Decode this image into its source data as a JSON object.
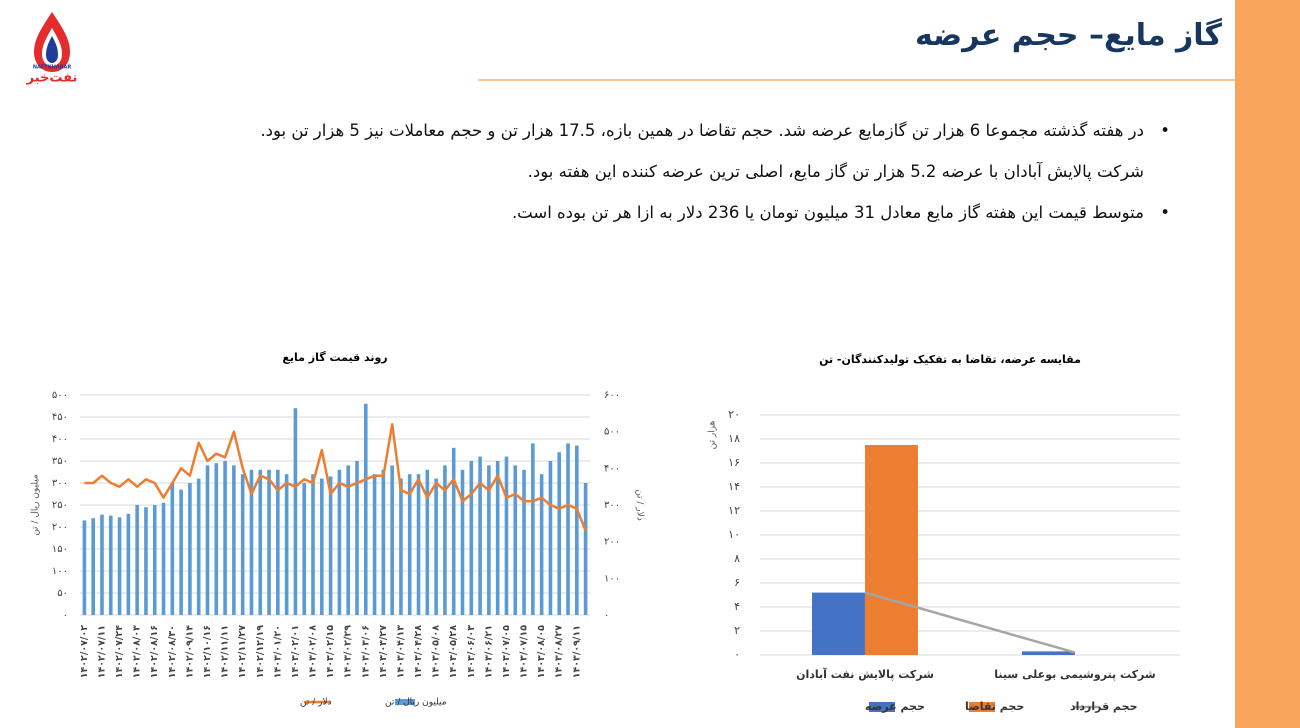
{
  "logo": {
    "brand_latin": "NAFTKHABAR",
    "brand": "نفت‌خبر"
  },
  "header": {
    "title": "گاز مایع– حجم عرضه"
  },
  "bullets": [
    {
      "text": "در هفته گذشته مجموعا 6 هزار تن گازمایع عرضه شد. حجم تقاضا در همین بازه، 17.5 هزار تن و حجم معاملات نیز 5 هزار تن بود.",
      "bullet": true
    },
    {
      "text": "شرکت پالایش آبادان با عرضه 5.2 هزار تن گاز مایع، اصلی ترین عرضه کننده این هفته بود.",
      "bullet": false
    },
    {
      "text": "متوسط قیمت این هفته گاز مایع معادل 31 میلیون تومان یا 236 دلار به ازا هر تن بوده است.",
      "bullet": true
    }
  ],
  "chart_data": [
    {
      "type": "bar",
      "title": "روند قیمت گاز مایع",
      "y_label": "میلیون ریال / تن",
      "y2_label": "دلار / تن",
      "grid": true,
      "categories": [
        "۱۴۰۲/۰۷/۰۲",
        null,
        "۱۴۰۲/۰۷/۱۱",
        null,
        "۱۴۰۲/۰۷/۲۴",
        null,
        "۱۴۰۲/۰۸/۰۳",
        null,
        "۱۴۰۲/۰۸/۱۶",
        null,
        "۱۴۰۲/۰۸/۳۰",
        null,
        "۱۴۰۲/۰۹/۱۴",
        null,
        "۱۴۰۲/۱۰/۱۶",
        null,
        "۱۴۰۲/۱۱/۱۱",
        null,
        "۱۴۰۲/۱۱/۲۷",
        null,
        "۱۴۰۲/۱۲/۱۹",
        null,
        "۱۴۰۳/۰۱/۲۰",
        null,
        "۱۴۰۳/۰۲/۰۱",
        null,
        "۱۴۰۳/۰۲/۰۸",
        null,
        "۱۴۰۳/۰۲/۱۵",
        null,
        "۱۴۰۳/۰۲/۲۹",
        null,
        "۱۴۰۳/۰۳/۰۶",
        null,
        "۱۴۰۳/۰۳/۲۷",
        null,
        "۱۴۰۳/۰۴/۱۳",
        null,
        "۱۴۰۳/۰۴/۲۸",
        null,
        "۱۴۰۳/۰۵/۰۸",
        null,
        "۱۴۰۳/۰۵/۲۸",
        null,
        "۱۴۰۳/۰۶/۰۳",
        null,
        "۱۴۰۳/۰۶/۲۱",
        null,
        "۱۴۰۳/۰۷/۰۵",
        null,
        "۱۴۰۳/۰۷/۱۵",
        null,
        "۱۴۰۳/۰۸/۰۵",
        null,
        "۱۴۰۳/۰۸/۲۷",
        null,
        "۱۴۰۳/۰۹/۱۱",
        null
      ],
      "series": [
        {
          "name": "میلیون ریال / تن",
          "color": "#5B9BD5",
          "type": "bar",
          "values": [
            215,
            220,
            228,
            226,
            222,
            230,
            250,
            245,
            250,
            255,
            300,
            285,
            300,
            310,
            340,
            345,
            350,
            340,
            320,
            330,
            330,
            330,
            330,
            320,
            470,
            300,
            320,
            310,
            315,
            330,
            340,
            350,
            480,
            320,
            330,
            340,
            310,
            320,
            320,
            330,
            310,
            340,
            380,
            330,
            350,
            360,
            340,
            350,
            360,
            340,
            330,
            390,
            320,
            350,
            370,
            390,
            385,
            300
          ]
        },
        {
          "name": "دلار / تن",
          "color": "#ED7D31",
          "type": "line",
          "axis": "y2",
          "values": [
            360,
            360,
            380,
            360,
            350,
            370,
            350,
            370,
            360,
            320,
            360,
            400,
            380,
            470,
            420,
            440,
            430,
            500,
            400,
            330,
            380,
            370,
            340,
            360,
            350,
            370,
            360,
            450,
            330,
            360,
            350,
            360,
            370,
            380,
            380,
            520,
            340,
            330,
            370,
            320,
            360,
            340,
            370,
            310,
            330,
            360,
            340,
            380,
            320,
            330,
            310,
            310,
            320,
            300,
            290,
            300,
            290,
            230
          ]
        }
      ],
      "ylim": [
        0,
        500
      ],
      "yticks": [
        {
          "value": 0,
          "label": "۰"
        },
        {
          "value": 50,
          "label": "۵۰"
        },
        {
          "value": 100,
          "label": "۱۰۰"
        },
        {
          "value": 150,
          "label": "۱۵۰"
        },
        {
          "value": 200,
          "label": "۲۰۰"
        },
        {
          "value": 250,
          "label": "۲۵۰"
        },
        {
          "value": 300,
          "label": "۳۰۰"
        },
        {
          "value": 350,
          "label": "۳۵۰"
        },
        {
          "value": 400,
          "label": "۴۰۰"
        },
        {
          "value": 450,
          "label": "۴۵۰"
        },
        {
          "value": 500,
          "label": "۵۰۰"
        }
      ],
      "y2lim": [
        0,
        600
      ],
      "y2ticks": [
        {
          "value": 0,
          "label": "۰"
        },
        {
          "value": 100,
          "label": "۱۰۰"
        },
        {
          "value": 200,
          "label": "۲۰۰"
        },
        {
          "value": 300,
          "label": "۳۰۰"
        },
        {
          "value": 400,
          "label": "۴۰۰"
        },
        {
          "value": 500,
          "label": "۵۰۰"
        },
        {
          "value": 600,
          "label": "۶۰۰"
        }
      ]
    },
    {
      "type": "bar",
      "title": "مقایسه عرضه، تقاضا به تفکیک تولیدکنندگان- تن",
      "y_label": "هزار تن",
      "grid": true,
      "categories": [
        "شرکت پالایش نفت آبادان",
        "شرکت پتروشیمی بوعلی سینا"
      ],
      "series": [
        {
          "name": "حجم عرضه",
          "color": "#4472C4",
          "type": "bar",
          "values": [
            5.2,
            0.3
          ]
        },
        {
          "name": "حجم تقاضا",
          "color": "#ED7D31",
          "type": "bar",
          "values": [
            17.5,
            0
          ]
        },
        {
          "name": "حجم قرارداد",
          "color": "#A5A5A5",
          "type": "line",
          "values": [
            5.2,
            0.2
          ]
        }
      ],
      "ylim": [
        0,
        20
      ],
      "yticks": [
        {
          "value": 0,
          "label": "۰"
        },
        {
          "value": 2,
          "label": "۲"
        },
        {
          "value": 4,
          "label": "۴"
        },
        {
          "value": 6,
          "label": "۶"
        },
        {
          "value": 8,
          "label": "۸"
        },
        {
          "value": 10,
          "label": "۱۰"
        },
        {
          "value": 12,
          "label": "۱۲"
        },
        {
          "value": 14,
          "label": "۱۴"
        },
        {
          "value": 16,
          "label": "۱۶"
        },
        {
          "value": 18,
          "label": "۱۸"
        },
        {
          "value": 20,
          "label": "۲۰"
        }
      ]
    }
  ]
}
